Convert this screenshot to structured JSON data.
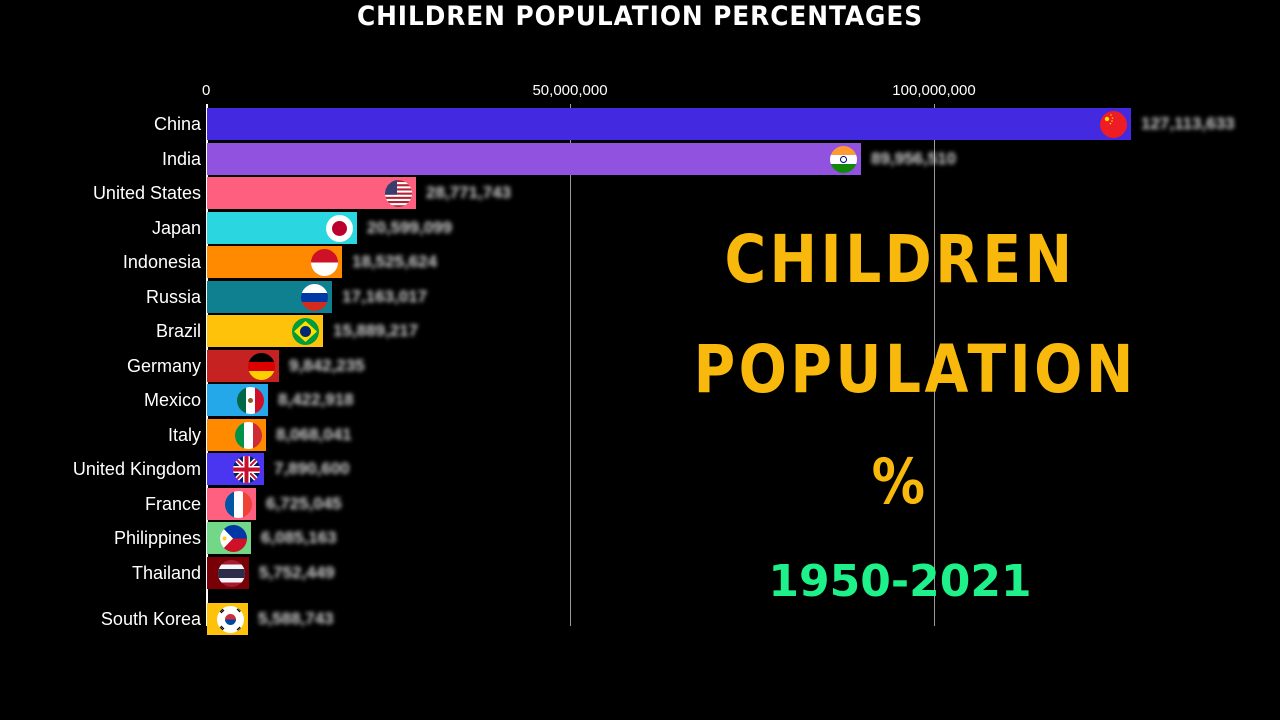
{
  "header": {
    "title": "CHILDREN  POPULATION PERCENTAGES"
  },
  "overlay": {
    "line1": "CHILDREN",
    "line2": "POPULATION",
    "line3": "%",
    "years": "1950-2021",
    "colors": {
      "title": "#F8B90C",
      "years": "#1EF08A"
    }
  },
  "axis": {
    "ticks": [
      "0",
      "50,000,000",
      "100,000,000"
    ]
  },
  "rows": [
    {
      "country": "China",
      "value": "127,113,633",
      "color": "#4329E0",
      "flag": "china-flag-icon"
    },
    {
      "country": "India",
      "value": "89,956,510",
      "color": "#9152E0",
      "flag": "india-flag-icon"
    },
    {
      "country": "United States",
      "value": "28,771,743",
      "color": "#FF5F7E",
      "flag": "usa-flag-icon"
    },
    {
      "country": "Japan",
      "value": "20,599,099",
      "color": "#2AD6E0",
      "flag": "japan-flag-icon"
    },
    {
      "country": "Indonesia",
      "value": "18,525,624",
      "color": "#FF8A00",
      "flag": "indonesia-flag-icon"
    },
    {
      "country": "Russia",
      "value": "17,163,017",
      "color": "#0F8090",
      "flag": "russia-flag-icon"
    },
    {
      "country": "Brazil",
      "value": "15,889,217",
      "color": "#FFC20A",
      "flag": "brazil-flag-icon"
    },
    {
      "country": "Germany",
      "value": "9,842,235",
      "color": "#C62222",
      "flag": "germany-flag-icon"
    },
    {
      "country": "Mexico",
      "value": "8,422,918",
      "color": "#25A8EA",
      "flag": "mexico-flag-icon"
    },
    {
      "country": "Italy",
      "value": "8,068,041",
      "color": "#FF8A00",
      "flag": "italy-flag-icon"
    },
    {
      "country": "United Kingdom",
      "value": "7,890,600",
      "color": "#4A35F0",
      "flag": "uk-flag-icon"
    },
    {
      "country": "France",
      "value": "6,725,045",
      "color": "#FF6080",
      "flag": "france-flag-icon"
    },
    {
      "country": "Philippines",
      "value": "6,085,163",
      "color": "#72D888",
      "flag": "philippines-flag-icon"
    },
    {
      "country": "Thailand",
      "value": "5,752,449",
      "color": "#7A0008",
      "flag": "thailand-flag-icon"
    },
    {
      "country": "South Korea",
      "value": "5,588,743",
      "color": "#FFC20A",
      "flag": "south-korea-flag-icon"
    }
  ],
  "chart_data": {
    "type": "bar",
    "orientation": "horizontal",
    "title": "CHILDREN  POPULATION PERCENTAGES",
    "subtitle": "CHILDREN POPULATION % 1950-2021",
    "xlabel": "",
    "ylabel": "",
    "xlim": [
      0,
      127113633
    ],
    "x_ticks": [
      0,
      50000000,
      100000000
    ],
    "grid": true,
    "legend": null,
    "categories": [
      "China",
      "India",
      "United States",
      "Japan",
      "Indonesia",
      "Russia",
      "Brazil",
      "Germany",
      "Mexico",
      "Italy",
      "United Kingdom",
      "France",
      "Philippines",
      "Thailand",
      "South Korea"
    ],
    "values": [
      127113633,
      89956510,
      28771743,
      20599099,
      18525624,
      17163017,
      15889217,
      9842235,
      8422918,
      8068041,
      7890600,
      6725045,
      6085163,
      5752449,
      5588743
    ]
  }
}
